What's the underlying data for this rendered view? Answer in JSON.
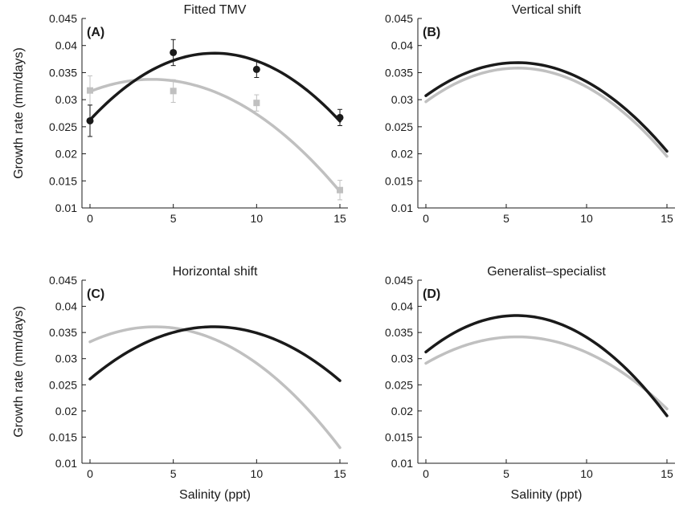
{
  "chart_data": [
    {
      "type": "line",
      "panel": "(A)",
      "title": "Fitted TMV",
      "xlabel": "",
      "ylabel": "Growth rate (mm/days)",
      "xlim": [
        0,
        15
      ],
      "ylim": [
        0.01,
        0.045
      ],
      "xticks": [
        0,
        5,
        10,
        15
      ],
      "yticks": [
        0.01,
        0.015,
        0.02,
        0.025,
        0.03,
        0.035,
        0.04,
        0.045
      ],
      "series": [
        {
          "color": "#1a1a1a",
          "curve": {
            "x": [
              0,
              2.5,
              5,
              7.5,
              10,
              12.5,
              15
            ],
            "y": [
              0.0261,
              0.0333,
              0.0374,
              0.0386,
              0.037,
              0.0328,
              0.0262
            ]
          },
          "points": {
            "x": [
              0,
              5,
              10,
              15
            ],
            "y": [
              0.0261,
              0.0387,
              0.0356,
              0.0267
            ],
            "err": [
              0.0029,
              0.0024,
              0.0015,
              0.0015
            ],
            "marker": "circle"
          }
        },
        {
          "color": "#c0c0c0",
          "curve": {
            "x": [
              0,
              2.5,
              5,
              7.5,
              10,
              12.5,
              15
            ],
            "y": [
              0.0316,
              0.0335,
              0.0333,
              0.0313,
              0.0276,
              0.0213,
              0.0129
            ]
          },
          "points": {
            "x": [
              0,
              5,
              10,
              15
            ],
            "y": [
              0.0317,
              0.0316,
              0.0294,
              0.0133
            ],
            "err": [
              0.0027,
              0.0021,
              0.0015,
              0.0018
            ],
            "marker": "square"
          }
        }
      ]
    },
    {
      "type": "line",
      "panel": "(B)",
      "title": "Vertical shift",
      "xlabel": "",
      "ylabel": "",
      "xlim": [
        0,
        15
      ],
      "ylim": [
        0.01,
        0.045
      ],
      "xticks": [
        0,
        5,
        10,
        15
      ],
      "yticks": [
        0.01,
        0.015,
        0.02,
        0.025,
        0.03,
        0.035,
        0.04,
        0.045
      ],
      "series": [
        {
          "color": "#1a1a1a",
          "curve": {
            "x": [
              0,
              2.5,
              5,
              7.5,
              10,
              12.5,
              15
            ],
            "y": [
              0.0308,
              0.035,
              0.0365,
              0.036,
              0.0337,
              0.0282,
              0.0203
            ]
          }
        },
        {
          "color": "#c0c0c0",
          "curve": {
            "x": [
              0,
              2.5,
              5,
              7.5,
              10,
              12.5,
              15
            ],
            "y": [
              0.0297,
              0.0339,
              0.0355,
              0.0351,
              0.0327,
              0.0272,
              0.0194
            ]
          }
        }
      ]
    },
    {
      "type": "line",
      "panel": "(C)",
      "title": "Horizontal shift",
      "xlabel": "Salinity (ppt)",
      "ylabel": "Growth rate (mm/days)",
      "xlim": [
        0,
        15
      ],
      "ylim": [
        0.01,
        0.045
      ],
      "xticks": [
        0,
        5,
        10,
        15
      ],
      "yticks": [
        0.01,
        0.015,
        0.02,
        0.025,
        0.03,
        0.035,
        0.04,
        0.045
      ],
      "series": [
        {
          "color": "#1a1a1a",
          "curve": {
            "x": [
              0,
              2.5,
              5,
              7.5,
              10,
              12.5,
              15
            ],
            "y": [
              0.0261,
              0.0318,
              0.0349,
              0.036,
              0.035,
              0.0316,
              0.0257
            ]
          }
        },
        {
          "color": "#c0c0c0",
          "curve": {
            "x": [
              0,
              2.5,
              5,
              7.5,
              10,
              12.5,
              15
            ],
            "y": [
              0.0333,
              0.0357,
              0.0357,
              0.0336,
              0.0292,
              0.0225,
              0.0128
            ]
          }
        }
      ]
    },
    {
      "type": "line",
      "panel": "(D)",
      "title": "Generalist–specialist",
      "xlabel": "Salinity (ppt)",
      "ylabel": "",
      "xlim": [
        0,
        15
      ],
      "ylim": [
        0.01,
        0.045
      ],
      "xticks": [
        0,
        5,
        10,
        15
      ],
      "yticks": [
        0.01,
        0.015,
        0.02,
        0.025,
        0.03,
        0.035,
        0.04,
        0.045
      ],
      "series": [
        {
          "color": "#1a1a1a",
          "curve": {
            "x": [
              0,
              2.5,
              5,
              7.5,
              10,
              12.5,
              15
            ],
            "y": [
              0.0313,
              0.0362,
              0.0379,
              0.0373,
              0.0345,
              0.0279,
              0.019
            ]
          }
        },
        {
          "color": "#c0c0c0",
          "curve": {
            "x": [
              0,
              2.5,
              5,
              7.5,
              10,
              12.5,
              15
            ],
            "y": [
              0.0291,
              0.0327,
              0.0339,
              0.0337,
              0.0313,
              0.0267,
              0.0204
            ]
          }
        }
      ]
    }
  ]
}
